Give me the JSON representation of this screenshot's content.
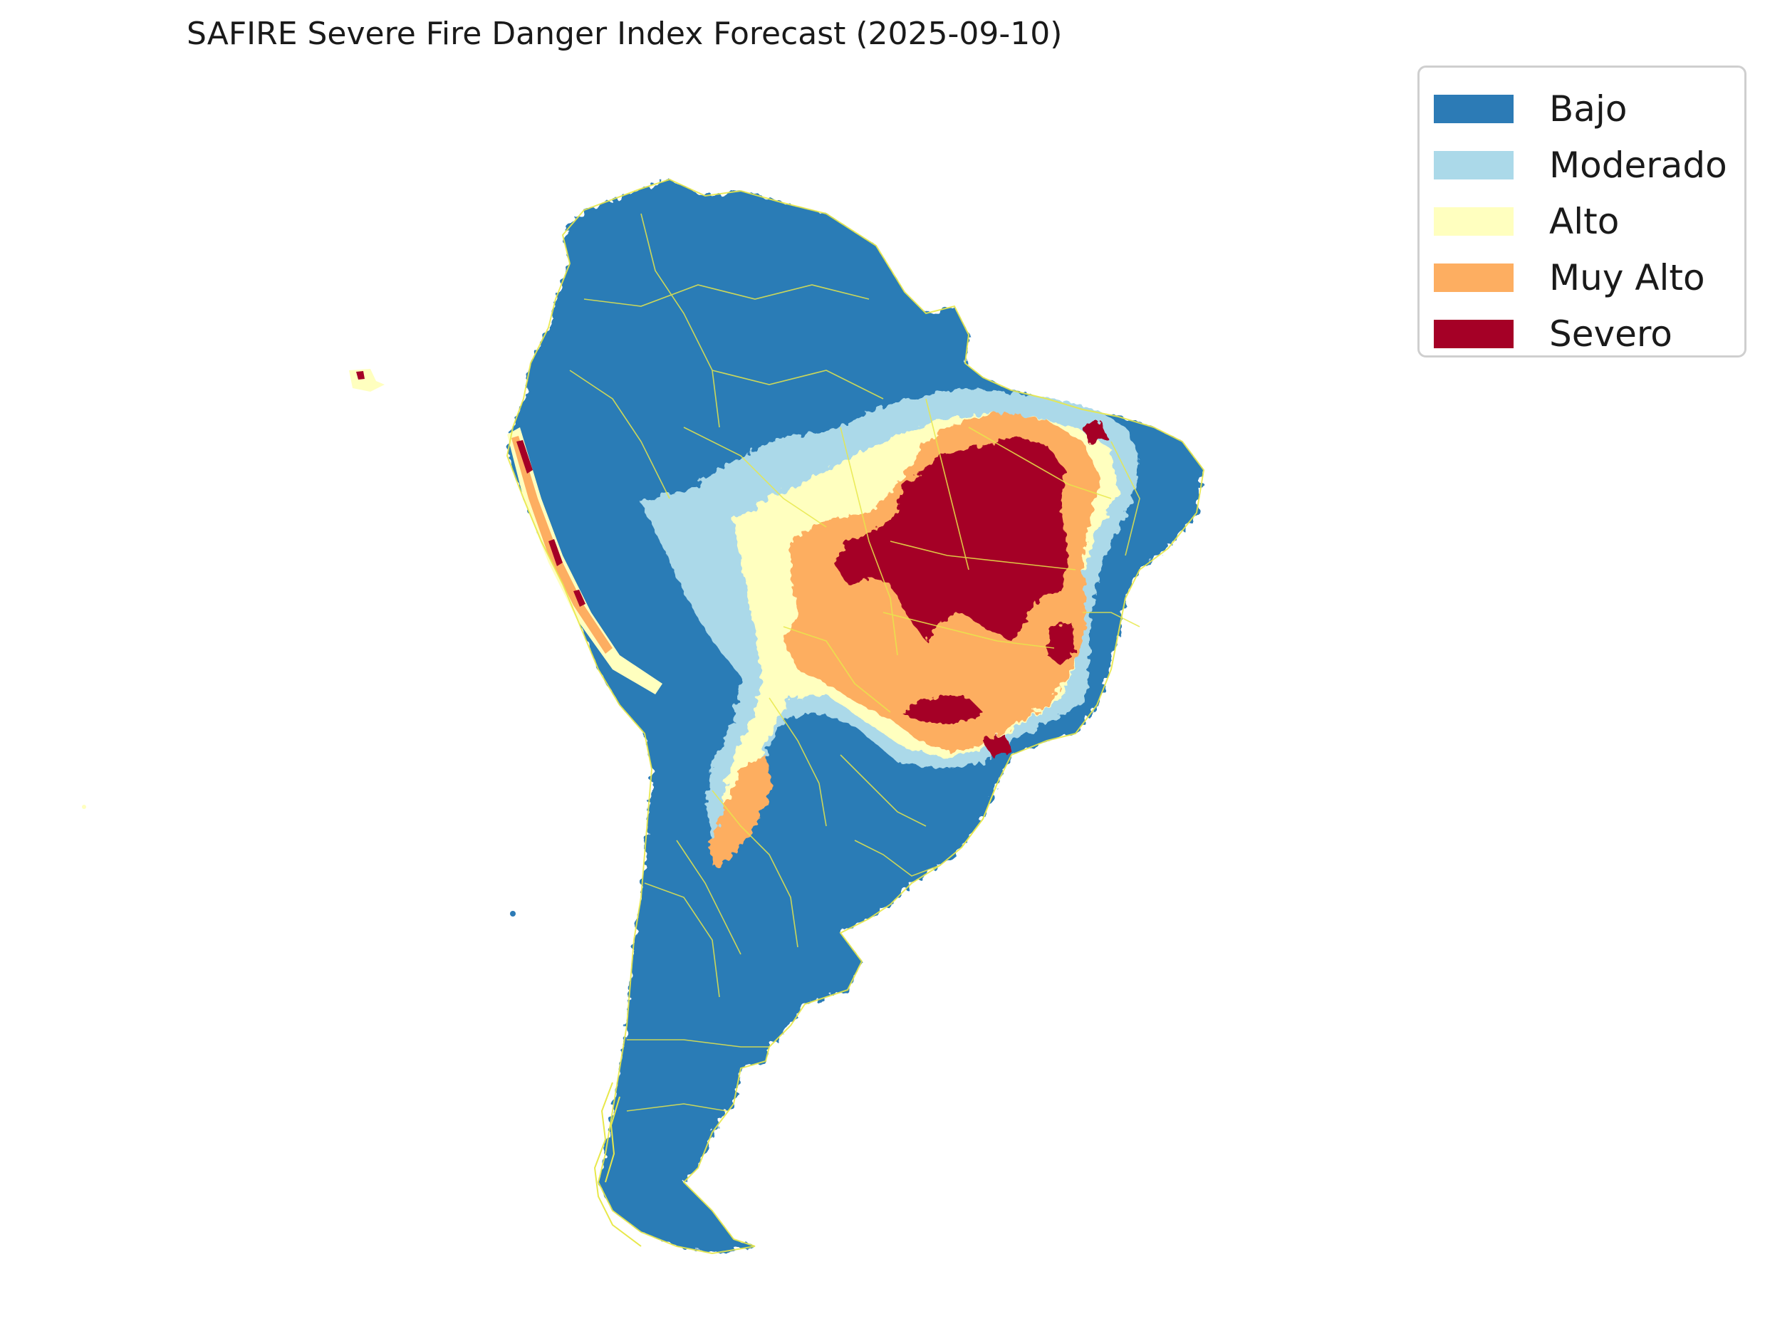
{
  "title": "SAFIRE Severe Fire Danger Index Forecast (2025-09-10)",
  "legend": {
    "entries": [
      {
        "label": "Bajo",
        "color": "#2c7bb6"
      },
      {
        "label": "Moderado",
        "color": "#abd9e9"
      },
      {
        "label": "Alto",
        "color": "#ffffbf"
      },
      {
        "label": "Muy Alto",
        "color": "#fdae61"
      },
      {
        "label": "Severo",
        "color": "#a50026"
      }
    ],
    "placement": "top-right"
  },
  "boundary_color": "#e8e84a"
}
